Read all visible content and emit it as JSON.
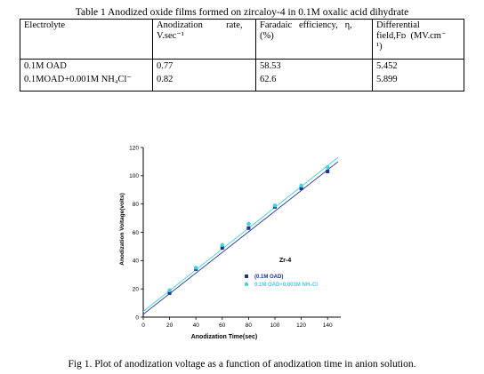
{
  "table": {
    "caption": "Table 1 Anodized oxide films formed on zircaloy-4 in 0.1M oxalic acid dihydrate",
    "header": {
      "electrolyte": "Electrolyte",
      "rate_line1": "Anodization          rate,",
      "rate_line2": "V.sec⁻¹",
      "efficiency_line1": "Faradaic   efficiency,   η,",
      "efficiency_line2": "(%)",
      "field_line1": "Differential",
      "field_line2": "field,Fᴅ  (MV.cm⁻",
      "field_line3": "¹)"
    },
    "rows": [
      {
        "electrolyte": "0.1M OAD",
        "rate": "0.77",
        "efficiency": "58.53",
        "field": "5.452"
      },
      {
        "electrolyte": "0.1MOAD+0.001M NH₄Cl⁻",
        "rate": "0.82",
        "efficiency": "62.6",
        "field": "5.899"
      }
    ]
  },
  "chart_data": {
    "type": "scatter",
    "xlabel": "Anodization Time(sec)",
    "ylabel": "Anodization Voltage(volts)",
    "xlim": [
      0,
      150
    ],
    "ylim": [
      0,
      120
    ],
    "x_ticks": [
      0,
      20,
      40,
      60,
      80,
      100,
      120,
      140
    ],
    "y_ticks": [
      0,
      20,
      40,
      60,
      80,
      100,
      120
    ],
    "annotation": "Zr-4",
    "series": [
      {
        "name": "(0.1M OAD)",
        "color": "#1f2f8f",
        "marker": "square",
        "x": [
          20,
          40,
          60,
          80,
          100,
          120,
          140
        ],
        "y": [
          17,
          34,
          49,
          63,
          78,
          91,
          103
        ],
        "fit": [
          [
            0,
            2
          ],
          [
            148,
            110
          ]
        ]
      },
      {
        "name": "0.1M OAD+0.001M NH₄Cl",
        "color": "#3fd3e3",
        "marker": "circle",
        "x": [
          20,
          40,
          60,
          80,
          100,
          120,
          140
        ],
        "y": [
          19,
          35,
          51,
          66,
          79,
          93,
          106
        ],
        "fit": [
          [
            0,
            4
          ],
          [
            148,
            113
          ]
        ]
      }
    ]
  },
  "figure": {
    "caption": "Fig 1. Plot of anodization voltage as a function of anodization time in anion solution."
  }
}
